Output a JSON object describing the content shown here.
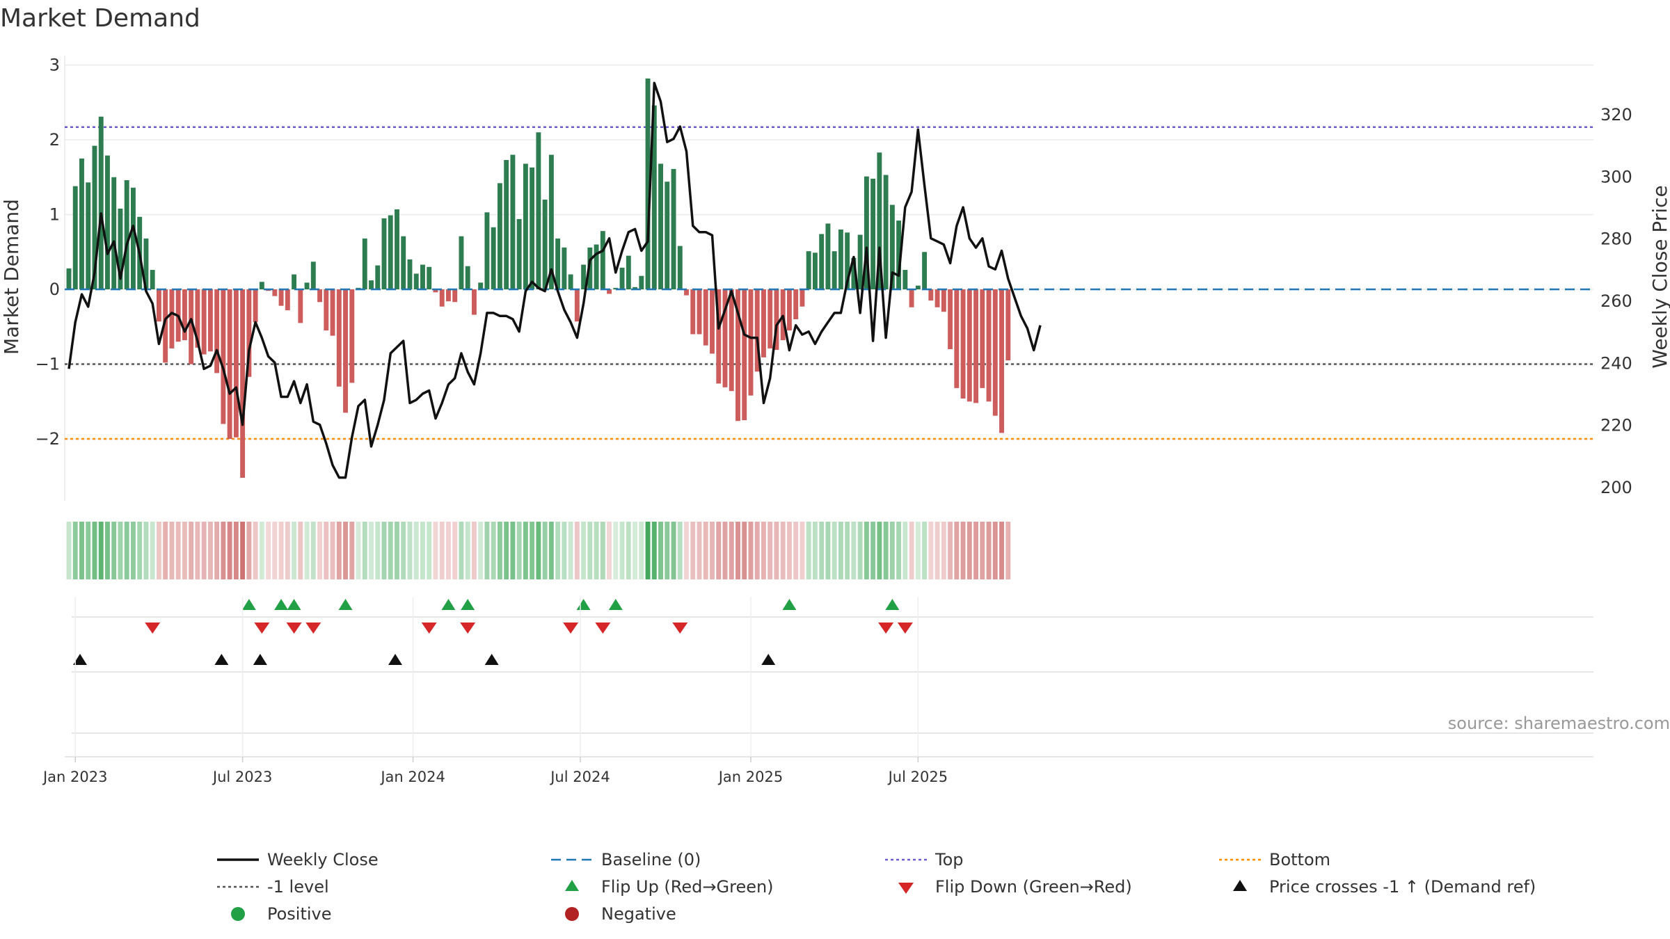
{
  "chart_data": {
    "type": "bar+line",
    "title": "Market Demand",
    "ylabel_left": "Market Demand",
    "ylabel_right": "Weekly Close Price",
    "ylim_left": [
      -2.8,
      3.1
    ],
    "ylim_right": [
      196,
      334
    ],
    "left_ticks": [
      3,
      2,
      1,
      0,
      -1,
      -2
    ],
    "left_tick_labels": [
      "3",
      "2",
      "1",
      "0",
      "−1",
      "−2"
    ],
    "right_ticks": [
      320,
      300,
      280,
      260,
      240,
      220,
      200
    ],
    "right_tick_labels": [
      "320",
      "300",
      "280",
      "260",
      "240",
      "220",
      "200"
    ],
    "reference_lines": {
      "top": 2.17,
      "minus_one": -1.0,
      "bottom": -2.0,
      "baseline": 0
    },
    "x_ticks": [
      {
        "label": "Jan 2023",
        "week": 1
      },
      {
        "label": "Jul 2023",
        "week": 27
      },
      {
        "label": "Jan 2024",
        "week": 53.5
      },
      {
        "label": "Jul 2024",
        "week": 79.5
      },
      {
        "label": "Jan 2025",
        "week": 106
      },
      {
        "label": "Jul 2025",
        "week": 132
      }
    ],
    "demand": [
      0.28,
      1.38,
      1.75,
      1.43,
      1.92,
      2.31,
      1.79,
      1.5,
      1.08,
      1.46,
      1.36,
      0.97,
      0.68,
      0.26,
      -0.43,
      -0.98,
      -0.79,
      -0.7,
      -0.68,
      -1.0,
      -0.78,
      -0.87,
      -0.83,
      -1.12,
      -1.8,
      -2.0,
      -1.98,
      -2.52,
      -1.17,
      -0.44,
      0.1,
      -0.02,
      -0.09,
      -0.22,
      -0.28,
      0.2,
      -0.45,
      0.09,
      0.37,
      -0.17,
      -0.55,
      -0.62,
      -1.3,
      -1.65,
      -1.25,
      0.02,
      0.68,
      0.12,
      0.32,
      0.95,
      0.99,
      1.07,
      0.71,
      0.4,
      0.21,
      0.33,
      0.3,
      -0.04,
      -0.23,
      -0.16,
      -0.17,
      0.71,
      0.31,
      -0.34,
      0.09,
      1.03,
      0.83,
      1.42,
      1.73,
      1.8,
      0.94,
      1.68,
      1.63,
      2.1,
      1.2,
      1.8,
      0.68,
      0.56,
      0.2,
      -0.43,
      0.33,
      0.56,
      0.6,
      0.78,
      -0.06,
      0.02,
      0.29,
      0.45,
      0.03,
      0.18,
      2.82,
      2.46,
      1.68,
      1.44,
      1.61,
      0.58,
      -0.08,
      -0.6,
      -0.6,
      -0.75,
      -0.86,
      -1.26,
      -1.31,
      -1.36,
      -1.76,
      -1.75,
      -1.42,
      -1.1,
      -0.91,
      -0.79,
      -0.81,
      -0.68,
      -0.55,
      -0.4,
      -0.23,
      0.51,
      0.49,
      0.74,
      0.88,
      0.51,
      0.8,
      0.76,
      0.42,
      0.73,
      1.51,
      1.48,
      1.83,
      1.53,
      1.13,
      0.92,
      0.26,
      -0.24,
      0.05,
      0.5,
      -0.15,
      -0.24,
      -0.3,
      -0.8,
      -1.32,
      -1.46,
      -1.5,
      -1.52,
      -1.32,
      -1.5,
      -1.69,
      -1.92,
      -0.95
    ],
    "close": [
      238,
      253,
      262,
      258,
      269,
      288,
      275,
      279,
      267,
      278,
      284,
      275,
      263,
      259,
      246,
      254,
      256,
      255,
      250,
      254,
      247,
      238,
      239,
      244,
      238,
      230,
      232,
      220,
      244,
      253,
      248,
      242,
      240,
      229,
      229,
      234,
      227,
      233,
      221,
      220,
      214,
      207,
      203,
      203,
      216,
      226,
      228,
      213,
      220,
      228,
      243,
      245,
      247,
      227,
      228,
      230,
      231,
      222,
      227,
      233,
      235,
      243,
      237,
      233,
      243,
      256,
      256,
      255,
      255,
      254,
      250,
      263,
      266,
      264,
      263,
      270,
      263,
      257,
      253,
      248,
      259,
      273,
      275,
      276,
      280,
      269,
      276,
      282,
      283,
      276,
      279,
      330,
      324,
      311,
      312,
      316,
      308,
      284,
      282,
      282,
      281,
      251,
      257,
      263,
      256,
      249,
      248,
      248,
      227,
      235,
      252,
      255,
      244,
      252,
      249,
      250,
      246,
      250,
      253,
      256,
      256,
      266,
      274,
      256,
      277,
      247,
      277,
      248,
      269,
      268,
      290,
      295,
      315,
      297,
      280,
      279,
      278,
      272,
      284,
      290,
      280,
      277,
      280,
      271,
      270,
      276,
      267,
      261,
      255,
      251,
      244,
      252
    ],
    "flip_up_weeks": [
      28,
      33,
      35,
      43,
      59,
      62,
      80,
      85,
      112,
      128
    ],
    "flip_down_weeks": [
      13,
      30,
      35,
      38,
      56,
      62,
      78,
      83,
      95,
      127,
      130
    ],
    "price_cross_weeks": [
      0,
      22,
      28,
      49,
      64,
      107
    ],
    "source": "source: sharemaestro.com",
    "legend": [
      {
        "label": "Weekly Close",
        "symbol": "line",
        "color": "#111111"
      },
      {
        "label": "Baseline (0)",
        "symbol": "dash",
        "color": "#1f77b4"
      },
      {
        "label": "Top",
        "symbol": "dot",
        "color": "#6a5acd"
      },
      {
        "label": "Bottom",
        "symbol": "dot",
        "color": "#ff8c00"
      },
      {
        "label": "-1 level",
        "symbol": "dot",
        "color": "#555555"
      },
      {
        "label": "Flip Up (Red→Green)",
        "symbol": "tri-up",
        "color": "#22a046"
      },
      {
        "label": "Flip Down (Green→Red)",
        "symbol": "tri-down",
        "color": "#d62728"
      },
      {
        "label": "Price crosses -1 ↑ (Demand ref)",
        "symbol": "tri-up",
        "color": "#111111"
      },
      {
        "label": "Positive",
        "symbol": "circle",
        "color": "#22a046"
      },
      {
        "label": "Negative",
        "symbol": "circle",
        "color": "#b22222"
      }
    ],
    "colors": {
      "positive": "#2e7d50",
      "negative": "#cd5c5c",
      "line": "#111111"
    }
  }
}
